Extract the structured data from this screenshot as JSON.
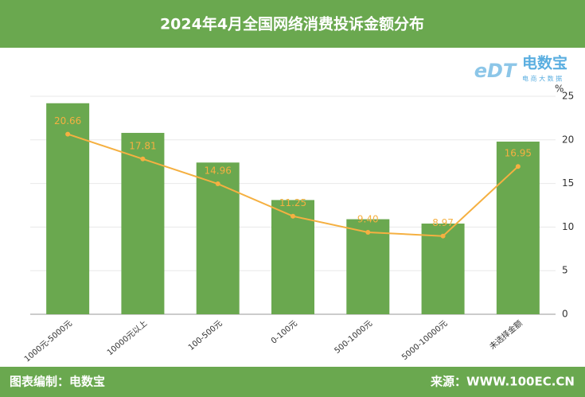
{
  "chart_data": {
    "type": "bar",
    "title": "2024年4月全国网络消费投诉金额分布",
    "categories": [
      "1000元-5000元",
      "10000元以上",
      "100-500元",
      "0-100元",
      "500-1000元",
      "5000-10000元",
      "未选择金额"
    ],
    "series": [
      {
        "type": "bar",
        "color": "#6aa84f",
        "values": [
          24.2,
          20.8,
          17.4,
          13.1,
          10.9,
          10.4,
          19.8
        ]
      },
      {
        "type": "line",
        "color": "#f5b041",
        "values": [
          20.66,
          17.81,
          14.96,
          11.25,
          9.4,
          8.97,
          16.95
        ],
        "value_labels": [
          "20.66",
          "17.81",
          "14.96",
          "11.25",
          "9.40",
          "8.97",
          "16.95"
        ]
      }
    ],
    "ylim": [
      0,
      25
    ],
    "yticks": [
      0,
      5,
      10,
      15,
      20,
      25
    ],
    "y_unit": "%",
    "grid": true,
    "logo": {
      "mark": "eDT",
      "name": "电数宝",
      "tagline": "电 商 大 数 据"
    },
    "footer_left": "图表编制：电数宝",
    "footer_right": "来源：WWW.100EC.CN"
  }
}
